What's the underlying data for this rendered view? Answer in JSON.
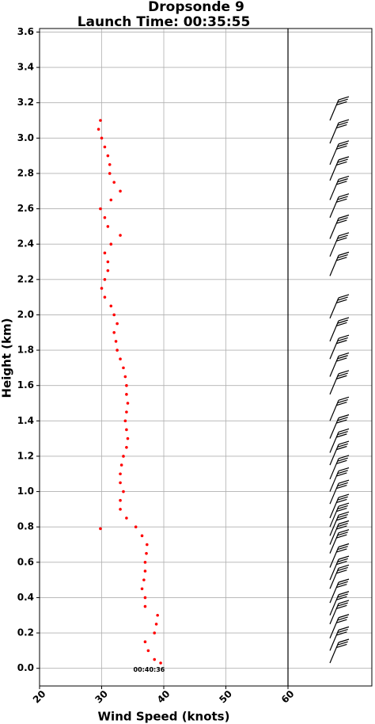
{
  "chart_data": {
    "type": "scatter",
    "title": "Dropsonde 9",
    "subtitle": "Launch Time: 00:35:55",
    "x_label": "Wind Speed (knots)",
    "y_label": "Height (km)",
    "annotation": {
      "text": "00:40:36",
      "x": 37,
      "y": 0.0
    },
    "xlim": [
      20,
      73.5
    ],
    "ylim": [
      -0.1,
      3.62
    ],
    "xticks": [
      20,
      30,
      40,
      50,
      60
    ],
    "yticks": [
      {
        "value": 0,
        "label": "0.0"
      },
      0.2,
      0.4,
      0.6,
      0.8,
      {
        "value": 1,
        "label": "1.0"
      },
      1.2,
      1.4,
      1.6,
      1.8,
      {
        "value": 2,
        "label": "2.0"
      },
      2.2,
      2.4,
      2.6,
      2.8,
      {
        "value": 3,
        "label": "3.0"
      },
      3.2,
      3.4,
      3.6
    ],
    "grid": true,
    "divider_x": 60,
    "color": "#ff0000",
    "barb_color": "#000000",
    "series": [
      {
        "color": "#ff0000",
        "x": [
          39.5,
          38.5,
          37.5,
          37,
          38.5,
          38.8,
          39,
          37,
          37,
          36.5,
          36.8,
          37,
          37,
          37.2,
          37.3,
          36.5,
          29.8,
          35.5,
          34,
          33,
          33,
          33.5,
          33,
          33,
          33.2,
          33.5,
          34,
          34.2,
          34,
          33.8,
          34,
          34.2,
          34,
          34,
          33.8,
          33.5,
          33,
          32.5,
          32.3,
          32,
          32.5,
          32,
          31.5,
          30.5,
          30,
          30.5,
          31,
          31,
          30.5,
          31.5,
          33,
          31,
          30.5,
          29.8,
          31.5,
          33,
          32,
          31.3,
          31.3,
          31,
          30.5,
          30,
          29.5,
          29.8
        ],
        "y": [
          0.03,
          0.05,
          0.1,
          0.15,
          0.2,
          0.25,
          0.3,
          0.35,
          0.4,
          0.45,
          0.5,
          0.55,
          0.6,
          0.65,
          0.7,
          0.75,
          0.79,
          0.8,
          0.85,
          0.9,
          0.95,
          1.0,
          1.05,
          1.1,
          1.15,
          1.2,
          1.25,
          1.3,
          1.35,
          1.4,
          1.45,
          1.5,
          1.55,
          1.6,
          1.65,
          1.7,
          1.75,
          1.8,
          1.85,
          1.9,
          1.95,
          2.0,
          2.05,
          2.1,
          2.15,
          2.2,
          2.25,
          2.3,
          2.35,
          2.4,
          2.45,
          2.5,
          2.55,
          2.6,
          2.65,
          2.7,
          2.75,
          2.8,
          2.85,
          2.9,
          2.95,
          3.0,
          3.05,
          3.1
        ]
      }
    ],
    "barbs": {
      "y": [
        0.03,
        0.1,
        0.17,
        0.25,
        0.3,
        0.37,
        0.45,
        0.5,
        0.57,
        0.65,
        0.7,
        0.75,
        0.8,
        0.85,
        0.93,
        1.0,
        1.07,
        1.15,
        1.22,
        1.3,
        1.4,
        1.55,
        1.65,
        1.75,
        1.85,
        1.98,
        2.22,
        2.33,
        2.43,
        2.55,
        2.65,
        2.76,
        2.85,
        2.97,
        3.1
      ]
    }
  }
}
